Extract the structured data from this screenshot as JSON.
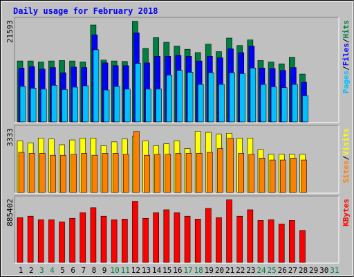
{
  "chart_data": {
    "type": "bar",
    "title": "Daily usage for February 2018",
    "x": [
      "1",
      "2",
      "3",
      "4",
      "5",
      "6",
      "7",
      "8",
      "9",
      "10",
      "11",
      "12",
      "13",
      "14",
      "15",
      "16",
      "17",
      "18",
      "19",
      "20",
      "21",
      "22",
      "23",
      "24",
      "25",
      "26",
      "27",
      "28",
      "29",
      "30",
      "31"
    ],
    "weekend_days": [
      "3",
      "4",
      "10",
      "11",
      "17",
      "18",
      "24",
      "25",
      "31"
    ],
    "panels": [
      {
        "id": "hits",
        "ymax_label": "21593",
        "ymax": 21593,
        "legend": [
          {
            "name": "Hits",
            "color": "#008040"
          },
          {
            "name": "Files",
            "color": "#0000ff"
          },
          {
            "name": "Pages",
            "color": "#00c0ff"
          }
        ],
        "series": [
          {
            "name": "Hits",
            "color": "#008040",
            "values": [
              13000,
              13000,
              12800,
              13000,
              13100,
              13000,
              12800,
              20700,
              13200,
              13000,
              12900,
              21500,
              15700,
              18000,
              17000,
              16200,
              15500,
              14800,
              16600,
              15000,
              17900,
              16300,
              17500,
              13100,
              12800,
              12400,
              13800,
              10200,
              0,
              0,
              0
            ]
          },
          {
            "name": "Files",
            "color": "#0000ff",
            "values": [
              11500,
              11800,
              11300,
              11600,
              10500,
              11700,
              11600,
              18600,
              12600,
              12000,
              12000,
              19000,
              12600,
              14000,
              14000,
              14200,
              14000,
              13000,
              14000,
              13700,
              15600,
              14800,
              16200,
              11500,
              11400,
              11000,
              11600,
              8500,
              0,
              0,
              0
            ]
          },
          {
            "name": "Pages",
            "color": "#00c0ff",
            "values": [
              7600,
              7200,
              7000,
              7800,
              6900,
              7400,
              7700,
              15400,
              6800,
              7600,
              7000,
              12500,
              7000,
              7000,
              10000,
              11000,
              10600,
              8000,
              10500,
              8000,
              10500,
              10300,
              11500,
              8000,
              7500,
              7300,
              8000,
              5600,
              0,
              0,
              0
            ]
          }
        ]
      },
      {
        "id": "visits",
        "ymax_label": "3333",
        "ymax": 3333,
        "legend": [
          {
            "name": "Visits",
            "color": "#ffff00"
          },
          {
            "name": "Sites",
            "color": "#ff8000"
          }
        ],
        "series": [
          {
            "name": "Visits",
            "color": "#ffff00",
            "values": [
              2700,
              2600,
              2850,
              2800,
              2500,
              2750,
              2850,
              2850,
              2450,
              2650,
              2800,
              2950,
              2700,
              2450,
              2550,
              2700,
              2300,
              3200,
              3150,
              3050,
              3100,
              2850,
              2850,
              2250,
              2000,
              2000,
              2000,
              2000,
              0,
              0,
              0
            ]
          },
          {
            "name": "Sites",
            "color": "#ff8000",
            "values": [
              2100,
              2050,
              2050,
              1950,
              1950,
              2000,
              2050,
              1950,
              2050,
              2050,
              2000,
              3200,
              1950,
              2000,
              2000,
              2050,
              2050,
              2050,
              2100,
              2300,
              2850,
              2050,
              2000,
              1800,
              1700,
              1700,
              1800,
              1700,
              0,
              0,
              0
            ]
          }
        ]
      },
      {
        "id": "kbytes",
        "ymax_label": "885402",
        "ymax": 885402,
        "legend": [
          {
            "name": "KBytes",
            "color": "#ff0000"
          }
        ],
        "series": [
          {
            "name": "KBytes",
            "color": "#ff0000",
            "values": [
              630000,
              650000,
              600000,
              600000,
              570000,
              620000,
              700000,
              770000,
              650000,
              600000,
              610000,
              860000,
              620000,
              700000,
              740000,
              700000,
              650000,
              610000,
              760000,
              630000,
              880000,
              650000,
              740000,
              590000,
              600000,
              540000,
              590000,
              450000,
              0,
              0,
              0
            ]
          }
        ]
      }
    ]
  }
}
